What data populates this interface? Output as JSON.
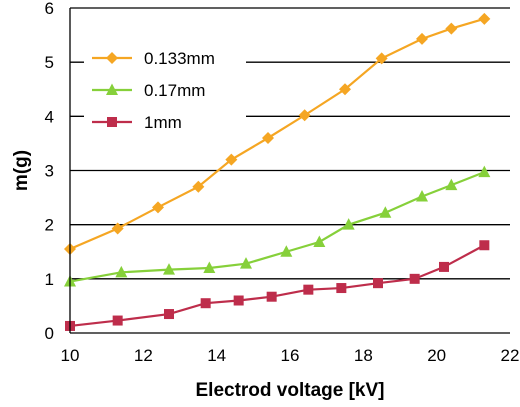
{
  "chart_data": {
    "type": "line",
    "xlabel": "Electrod voltage [kV]",
    "ylabel": "m(g)",
    "xlim": [
      10,
      22
    ],
    "ylim": [
      0,
      6
    ],
    "x_ticks": [
      "10",
      "12",
      "14",
      "16",
      "18",
      "20",
      "22"
    ],
    "y_ticks": [
      "0",
      "1",
      "2",
      "3",
      "4",
      "5",
      "6"
    ],
    "grid": "horizontal",
    "legend_position": "top-left",
    "series": [
      {
        "name": "0.133mm",
        "color": "#F5A623",
        "marker": "diamond",
        "x": [
          10.0,
          11.3,
          12.4,
          13.5,
          14.4,
          15.4,
          16.4,
          17.5,
          18.5,
          19.6,
          20.4,
          21.3
        ],
        "y": [
          1.55,
          1.93,
          2.32,
          2.7,
          3.2,
          3.6,
          4.02,
          4.5,
          5.07,
          5.43,
          5.62,
          5.8
        ]
      },
      {
        "name": "0.17mm",
        "color": "#86D03A",
        "marker": "triangle",
        "x": [
          10.0,
          11.4,
          12.7,
          13.8,
          14.8,
          15.9,
          16.8,
          17.6,
          18.6,
          19.6,
          20.4,
          21.3
        ],
        "y": [
          0.95,
          1.12,
          1.17,
          1.2,
          1.28,
          1.5,
          1.68,
          2.0,
          2.22,
          2.52,
          2.73,
          2.97
        ]
      },
      {
        "name": "1mm",
        "color": "#BE2D4B",
        "marker": "square",
        "x": [
          10.0,
          11.3,
          12.7,
          13.7,
          14.6,
          15.5,
          16.5,
          17.4,
          18.4,
          19.4,
          20.2,
          21.3
        ],
        "y": [
          0.13,
          0.23,
          0.35,
          0.55,
          0.6,
          0.67,
          0.8,
          0.83,
          0.92,
          1.0,
          1.22,
          1.62
        ]
      }
    ]
  }
}
